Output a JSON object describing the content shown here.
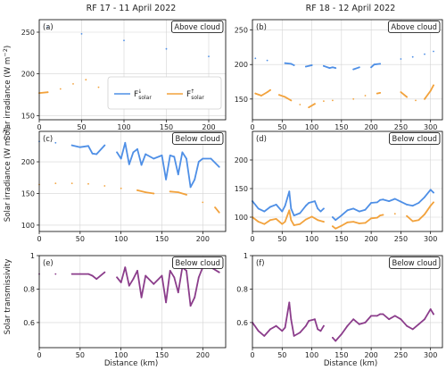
{
  "figure": {
    "titles": [
      "RF 17 - 11 April 2022",
      "RF 18 - 12 April 2022"
    ],
    "xlabel": "Distance (km)",
    "ylabels": {
      "irradiance": "Solar irradiance (W m",
      "irradiance_exp": "−2",
      "irradiance_close": ")",
      "transmissivity": "Solar transmissivity"
    },
    "legend": {
      "down": {
        "main": "F",
        "sup": "↓",
        "sub": "solar"
      },
      "up": {
        "main": "F",
        "sup": "↑",
        "sub": "solar"
      }
    },
    "colors": {
      "down": "#4e8fe6",
      "up": "#f2a23c",
      "trans": "#8b3d8b",
      "grid": "#d4d4d4"
    }
  },
  "chart_data": [
    {
      "panel": "(a)",
      "tag": "Above cloud",
      "type": "line",
      "grid": true,
      "xlim": [
        0,
        220
      ],
      "ylim": [
        145,
        265
      ],
      "xticks": [
        0,
        50,
        100,
        150,
        200
      ],
      "yticks": [
        150,
        200,
        250
      ],
      "series": [
        {
          "name": "F↓ solar",
          "role": "down",
          "x": [
            10,
            50,
            100,
            150,
            200
          ],
          "y": [
            256,
            248,
            240,
            230,
            221
          ]
        },
        {
          "name": "F↑ solar",
          "role": "up",
          "x": [
            0,
            10,
            25,
            40,
            55,
            70,
            90,
            115,
            140,
            160,
            180,
            200
          ],
          "y": [
            177,
            178,
            182,
            188,
            193,
            184,
            172,
            166,
            174,
            179,
            175,
            166
          ]
        }
      ]
    },
    {
      "panel": "(b)",
      "tag": "Above cloud",
      "type": "line",
      "grid": true,
      "xlim": [
        0,
        320
      ],
      "ylim": [
        120,
        265
      ],
      "xticks": [
        0,
        50,
        100,
        150,
        200,
        250,
        300
      ],
      "yticks": [
        150,
        200,
        250
      ],
      "series": [
        {
          "role": "down",
          "x": [
            5,
            25,
            55,
            65,
            70,
            90,
            100,
            120,
            130,
            135,
            140,
            170,
            180,
            200,
            205,
            215,
            250,
            270,
            290,
            305
          ],
          "y": [
            209,
            206,
            202,
            201,
            199,
            197,
            199,
            198,
            195,
            196,
            195,
            193,
            196,
            196,
            200,
            201,
            208,
            211,
            215,
            219
          ]
        },
        {
          "role": "up",
          "x": [
            5,
            15,
            25,
            30,
            45,
            55,
            65,
            80,
            95,
            105,
            120,
            135,
            170,
            190,
            210,
            215,
            250,
            260,
            275,
            290,
            300,
            305
          ],
          "y": [
            158,
            155,
            160,
            163,
            156,
            153,
            148,
            142,
            138,
            143,
            147,
            148,
            150,
            155,
            158,
            159,
            160,
            153,
            148,
            150,
            162,
            170
          ]
        }
      ]
    },
    {
      "panel": "(c)",
      "tag": "Below cloud",
      "type": "line",
      "grid": true,
      "xlim": [
        0,
        228
      ],
      "ylim": [
        90,
        248
      ],
      "xticks": [
        0,
        50,
        100,
        150,
        200
      ],
      "yticks": [
        100,
        150,
        200
      ],
      "series": [
        {
          "role": "down",
          "x": [
            0,
            20,
            40,
            50,
            60,
            65,
            70,
            80,
            95,
            100,
            105,
            110,
            115,
            120,
            125,
            130,
            140,
            150,
            155,
            160,
            165,
            170,
            175,
            180,
            185,
            190,
            195,
            200,
            210,
            220
          ],
          "y": [
            232,
            230,
            226,
            223,
            225,
            213,
            212,
            226,
            215,
            205,
            230,
            196,
            215,
            220,
            195,
            212,
            205,
            210,
            172,
            210,
            208,
            180,
            215,
            205,
            160,
            172,
            200,
            205,
            205,
            192
          ]
        },
        {
          "role": "up",
          "x": [
            0,
            20,
            40,
            60,
            80,
            100,
            120,
            130,
            140,
            160,
            170,
            180,
            200,
            215,
            220
          ],
          "y": [
            164,
            166,
            166,
            165,
            162,
            158,
            155,
            152,
            150,
            153,
            152,
            148,
            136,
            128,
            120
          ]
        }
      ]
    },
    {
      "panel": "(d)",
      "tag": "Below cloud",
      "type": "line",
      "grid": true,
      "xlim": [
        0,
        320
      ],
      "ylim": [
        75,
        250
      ],
      "xticks": [
        0,
        50,
        100,
        150,
        200,
        250,
        300
      ],
      "yticks": [
        100,
        150,
        200
      ],
      "series": [
        {
          "role": "down",
          "x": [
            0,
            10,
            20,
            30,
            40,
            50,
            55,
            62,
            65,
            70,
            80,
            90,
            95,
            105,
            110,
            115,
            120,
            135,
            140,
            150,
            160,
            170,
            180,
            190,
            200,
            210,
            215,
            220,
            230,
            240,
            250,
            260,
            270,
            280,
            290,
            300,
            305
          ],
          "y": [
            128,
            115,
            110,
            118,
            122,
            110,
            120,
            145,
            115,
            103,
            107,
            120,
            125,
            128,
            115,
            110,
            115,
            100,
            95,
            103,
            112,
            115,
            110,
            113,
            125,
            126,
            130,
            131,
            128,
            132,
            127,
            122,
            120,
            125,
            135,
            148,
            143
          ]
        },
        {
          "role": "up",
          "x": [
            0,
            10,
            20,
            30,
            40,
            50,
            55,
            62,
            65,
            70,
            80,
            90,
            100,
            110,
            120,
            135,
            140,
            150,
            160,
            170,
            180,
            190,
            200,
            210,
            215,
            220,
            240,
            260,
            270,
            280,
            290,
            300,
            305
          ],
          "y": [
            100,
            92,
            88,
            95,
            97,
            88,
            92,
            112,
            95,
            86,
            88,
            96,
            101,
            95,
            92,
            84,
            80,
            85,
            91,
            92,
            89,
            90,
            98,
            99,
            103,
            104,
            106,
            102,
            93,
            95,
            105,
            120,
            126
          ]
        }
      ]
    },
    {
      "panel": "(e)",
      "tag": "Below cloud",
      "type": "line",
      "grid": true,
      "xlim": [
        0,
        228
      ],
      "ylim": [
        0.45,
        1.0
      ],
      "xticks": [
        0,
        50,
        100,
        150,
        200
      ],
      "yticks": [
        0.6,
        0.8,
        1.0
      ],
      "series": [
        {
          "role": "trans",
          "x": [
            0,
            20,
            40,
            50,
            60,
            65,
            70,
            80,
            95,
            100,
            105,
            110,
            115,
            120,
            125,
            130,
            140,
            150,
            155,
            160,
            165,
            170,
            175,
            180,
            185,
            190,
            195,
            200,
            210,
            220
          ],
          "y": [
            0.89,
            0.89,
            0.89,
            0.89,
            0.89,
            0.88,
            0.86,
            0.9,
            0.87,
            0.84,
            0.93,
            0.82,
            0.86,
            0.91,
            0.75,
            0.88,
            0.83,
            0.88,
            0.72,
            0.91,
            0.87,
            0.78,
            0.93,
            0.91,
            0.7,
            0.75,
            0.87,
            0.93,
            0.93,
            0.9
          ]
        }
      ]
    },
    {
      "panel": "(f)",
      "tag": "Below cloud",
      "type": "line",
      "grid": true,
      "xlim": [
        0,
        320
      ],
      "ylim": [
        0.45,
        1.0
      ],
      "xticks": [
        0,
        50,
        100,
        150,
        200,
        250,
        300
      ],
      "yticks": [
        0.6,
        0.8,
        1.0
      ],
      "series": [
        {
          "role": "trans",
          "x": [
            0,
            10,
            20,
            30,
            40,
            50,
            55,
            62,
            65,
            70,
            80,
            90,
            95,
            105,
            110,
            115,
            120,
            135,
            140,
            150,
            160,
            170,
            180,
            190,
            200,
            210,
            215,
            220,
            230,
            240,
            250,
            260,
            270,
            280,
            290,
            300,
            305
          ],
          "y": [
            0.6,
            0.55,
            0.52,
            0.56,
            0.58,
            0.55,
            0.57,
            0.72,
            0.62,
            0.52,
            0.54,
            0.58,
            0.61,
            0.62,
            0.56,
            0.55,
            0.58,
            0.51,
            0.49,
            0.53,
            0.58,
            0.62,
            0.59,
            0.6,
            0.64,
            0.64,
            0.65,
            0.65,
            0.62,
            0.64,
            0.62,
            0.58,
            0.56,
            0.59,
            0.62,
            0.68,
            0.65
          ]
        }
      ]
    }
  ]
}
